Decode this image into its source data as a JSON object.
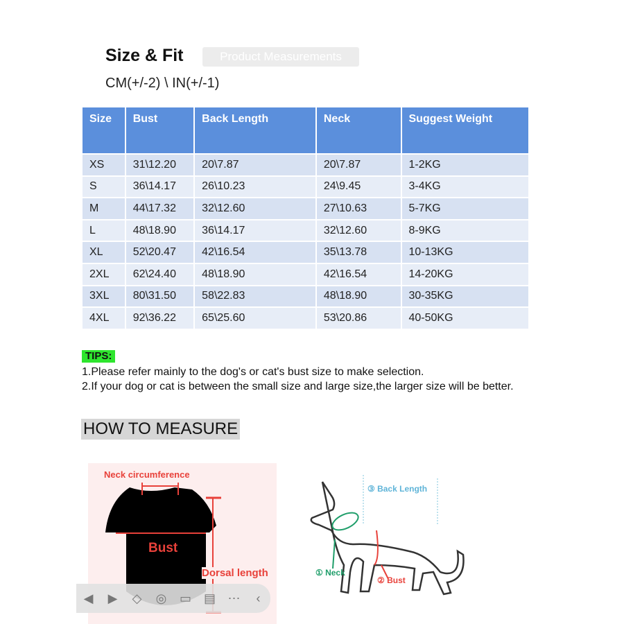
{
  "header": {
    "title": "Size & Fit",
    "badge": "Product Measurements",
    "units": "CM(+/-2) \\ IN(+/-1)"
  },
  "table": {
    "headers": [
      "Size",
      "Bust",
      "Back Length",
      "Neck",
      "Suggest Weight"
    ],
    "rows": [
      [
        "XS",
        "31\\12.20",
        "20\\7.87",
        "20\\7.87",
        "1-2KG"
      ],
      [
        "S",
        "36\\14.17",
        "26\\10.23",
        "24\\9.45",
        "3-4KG"
      ],
      [
        "M",
        "44\\17.32",
        "32\\12.60",
        "27\\10.63",
        "5-7KG"
      ],
      [
        "L",
        "48\\18.90",
        "36\\14.17",
        "32\\12.60",
        "8-9KG"
      ],
      [
        "XL",
        "52\\20.47",
        "42\\16.54",
        "35\\13.78",
        "10-13KG"
      ],
      [
        "2XL",
        "62\\24.40",
        "48\\18.90",
        "42\\16.54",
        "14-20KG"
      ],
      [
        "3XL",
        "80\\31.50",
        "58\\22.83",
        "48\\18.90",
        "30-35KG"
      ],
      [
        "4XL",
        "92\\36.22",
        "65\\25.60",
        "53\\20.86",
        "40-50KG"
      ]
    ]
  },
  "tips": {
    "label": "TIPS:",
    "line1": "1.Please refer mainly to the dog's or cat's  bust size to make selection.",
    "line2": "2.If your dog or cat is between the small size and large size,the larger size will be better."
  },
  "how_to": {
    "title": "HOW TO MEASURE",
    "shirt": {
      "neck": "Neck circumference",
      "bust": "Bust",
      "dorsal": "Dorsal length"
    },
    "dog": {
      "back": "③ Back Length",
      "neck": "① Neck",
      "bust": "② Bust"
    }
  },
  "colors": {
    "header_blue": "#5b8fdc",
    "tips_green": "#2ee52e",
    "measure_red": "#e8413a",
    "neck_green": "#1f9e6a",
    "back_blue": "#5fb4d8"
  },
  "toolbar": {
    "icons": [
      "prev-icon",
      "play-icon",
      "eraser-icon",
      "screenshot-icon",
      "camera-icon",
      "comment-icon",
      "more-icon",
      "collapse-icon"
    ]
  }
}
